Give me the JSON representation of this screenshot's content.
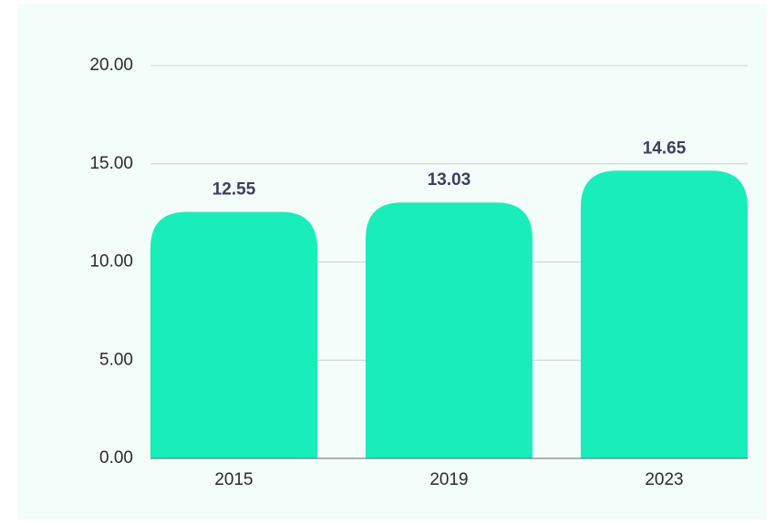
{
  "chart_data": {
    "type": "bar",
    "categories": [
      "2015",
      "2019",
      "2023"
    ],
    "values": [
      12.55,
      13.03,
      14.65
    ],
    "color": "#19edb9",
    "ylim": [
      0,
      20
    ],
    "yticks": [
      {
        "value": 0,
        "label": "0.00"
      },
      {
        "value": 5,
        "label": "5.00"
      },
      {
        "value": 10,
        "label": "10.00"
      },
      {
        "value": 15,
        "label": "15.00"
      },
      {
        "value": 20,
        "label": "20.00"
      }
    ],
    "grid": true
  }
}
